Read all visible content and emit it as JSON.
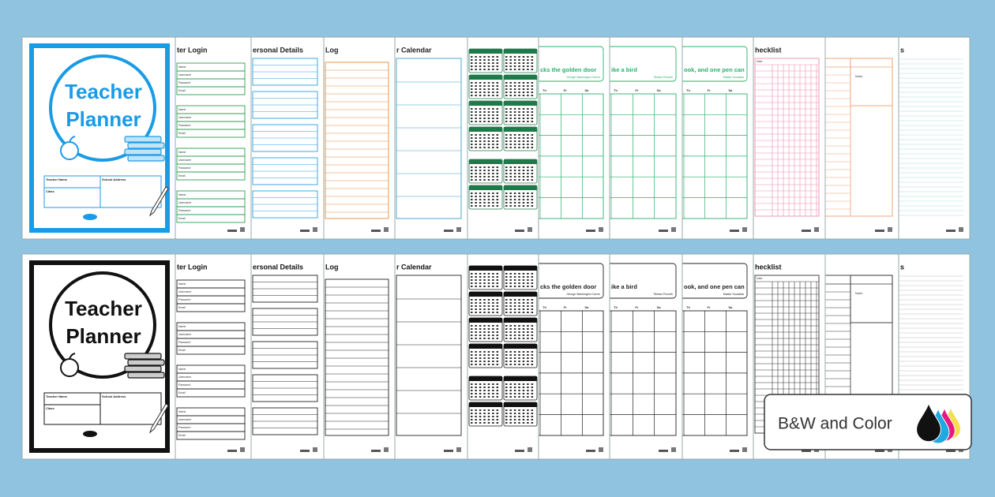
{
  "cover": {
    "title_lines": [
      "Teacher",
      "Planner"
    ],
    "fields": [
      "Teacher Name",
      "School Address",
      "Class"
    ]
  },
  "pages": [
    {
      "kind": "login",
      "title": "ter Login",
      "labels": [
        "Name",
        "Username",
        "Password",
        "Email"
      ]
    },
    {
      "kind": "details",
      "title": "ersonal Details"
    },
    {
      "kind": "log",
      "title": "Log"
    },
    {
      "kind": "calendar",
      "title": "r Calendar"
    },
    {
      "kind": "year"
    },
    {
      "kind": "monthly",
      "title": "cks the golden door",
      "author": "George Washington Carver",
      "days": [
        "Th",
        "Fr",
        "Sa"
      ]
    },
    {
      "kind": "monthly",
      "title": "ike a bird",
      "author": "Tibetan Proverb",
      "days": [
        "Th",
        "Fr",
        "Sa"
      ]
    },
    {
      "kind": "monthly",
      "title": "ook, and one pen can",
      "author": "Malala Yousafzai",
      "days": [
        "Th",
        "Fr",
        "Sa"
      ]
    },
    {
      "kind": "checklist",
      "title": "hecklist",
      "label": "Date"
    },
    {
      "kind": "notes",
      "label": "Notes"
    },
    {
      "kind": "lined",
      "title": "s"
    }
  ],
  "badge": "B&W and Color"
}
